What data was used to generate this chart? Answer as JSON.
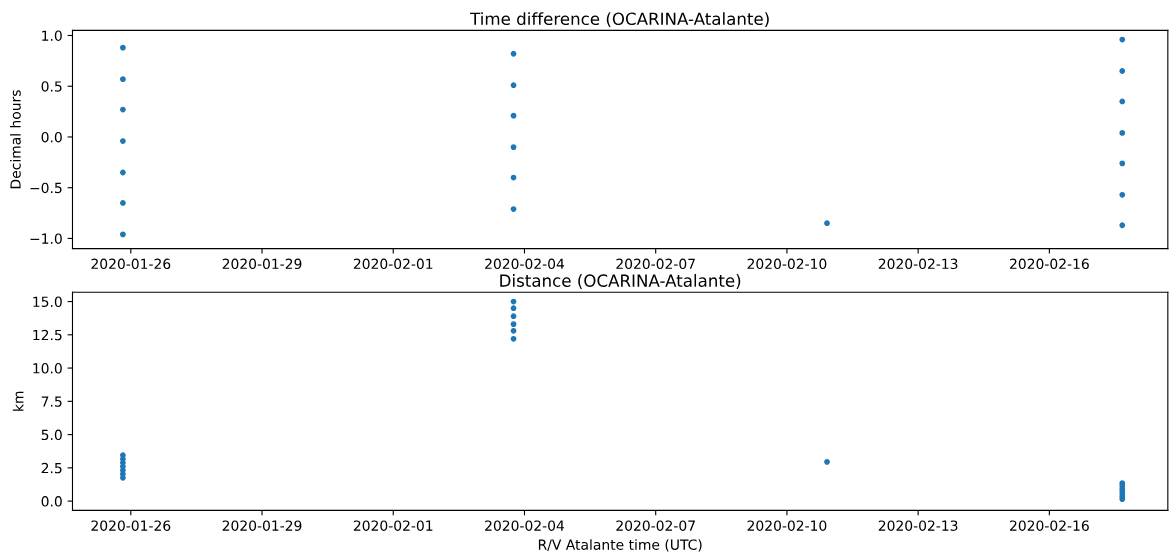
{
  "chart_data": [
    {
      "type": "scatter",
      "title": "Time difference (OCARINA-Atalante)",
      "ylabel": "Decimal hours",
      "x": [
        "2020-01-25T19:40",
        "2020-01-25T19:40",
        "2020-01-25T19:40",
        "2020-01-25T19:40",
        "2020-01-25T19:40",
        "2020-01-25T19:40",
        "2020-01-25T19:40",
        "2020-02-03T18:00",
        "2020-02-03T18:00",
        "2020-02-03T18:00",
        "2020-02-03T18:00",
        "2020-02-03T18:00",
        "2020-02-03T18:00",
        "2020-02-10T22:00",
        "2020-02-17T16:00",
        "2020-02-17T16:00",
        "2020-02-17T16:00",
        "2020-02-17T16:00",
        "2020-02-17T16:00",
        "2020-02-17T16:00",
        "2020-02-17T16:00"
      ],
      "series": [
        {
          "color": "#1f77b4",
          "values": [
            0.88,
            0.57,
            0.27,
            -0.04,
            -0.35,
            -0.65,
            -0.96,
            0.82,
            0.51,
            0.21,
            -0.1,
            -0.4,
            -0.71,
            -0.85,
            0.96,
            0.65,
            0.35,
            0.04,
            -0.26,
            -0.57,
            -0.87
          ]
        }
      ],
      "xlim": [
        "2020-01-24T16:00",
        "2020-02-18T17:00"
      ],
      "xticks": [
        "2020-01-26",
        "2020-01-29",
        "2020-02-01",
        "2020-02-04",
        "2020-02-07",
        "2020-02-10",
        "2020-02-13",
        "2020-02-16"
      ],
      "ylim": [
        -1.1,
        1.05
      ],
      "yticks": [
        {
          "value": -1.0,
          "label": "−1.0"
        },
        {
          "value": -0.5,
          "label": "−0.5"
        },
        {
          "value": 0.0,
          "label": "0.0"
        },
        {
          "value": 0.5,
          "label": "0.5"
        },
        {
          "value": 1.0,
          "label": "1.0"
        }
      ],
      "marker": "circle",
      "grid": false,
      "legend": false
    },
    {
      "type": "scatter",
      "title": "Distance (OCARINA-Atalante)",
      "ylabel": "km",
      "xlabel": "R/V Atalante time (UTC)",
      "x": [
        "2020-01-25T19:40",
        "2020-01-25T19:40",
        "2020-01-25T19:40",
        "2020-01-25T19:40",
        "2020-01-25T19:40",
        "2020-01-25T19:40",
        "2020-01-25T19:40",
        "2020-02-03T18:00",
        "2020-02-03T18:00",
        "2020-02-03T18:00",
        "2020-02-03T18:00",
        "2020-02-03T18:00",
        "2020-02-03T18:00",
        "2020-02-10T22:00",
        "2020-02-17T16:00",
        "2020-02-17T16:00",
        "2020-02-17T16:00",
        "2020-02-17T16:00",
        "2020-02-17T16:00",
        "2020-02-17T16:00",
        "2020-02-17T16:00"
      ],
      "series": [
        {
          "color": "#1f77b4",
          "values": [
            3.45,
            3.17,
            2.88,
            2.6,
            2.32,
            2.03,
            1.75,
            15.0,
            14.5,
            13.9,
            13.3,
            12.8,
            12.2,
            2.95,
            1.35,
            1.15,
            0.95,
            0.75,
            0.55,
            0.35,
            0.15
          ]
        }
      ],
      "xlim": [
        "2020-01-24T16:00",
        "2020-02-18T17:00"
      ],
      "xticks": [
        "2020-01-26",
        "2020-01-29",
        "2020-02-01",
        "2020-02-04",
        "2020-02-07",
        "2020-02-10",
        "2020-02-13",
        "2020-02-16"
      ],
      "ylim": [
        -0.7,
        15.7
      ],
      "yticks": [
        {
          "value": 0.0,
          "label": "0.0"
        },
        {
          "value": 2.5,
          "label": "2.5"
        },
        {
          "value": 5.0,
          "label": "5.0"
        },
        {
          "value": 7.5,
          "label": "7.5"
        },
        {
          "value": 10.0,
          "label": "10.0"
        },
        {
          "value": 12.5,
          "label": "12.5"
        },
        {
          "value": 15.0,
          "label": "15.0"
        }
      ],
      "marker": "circle",
      "grid": false,
      "legend": false
    }
  ]
}
